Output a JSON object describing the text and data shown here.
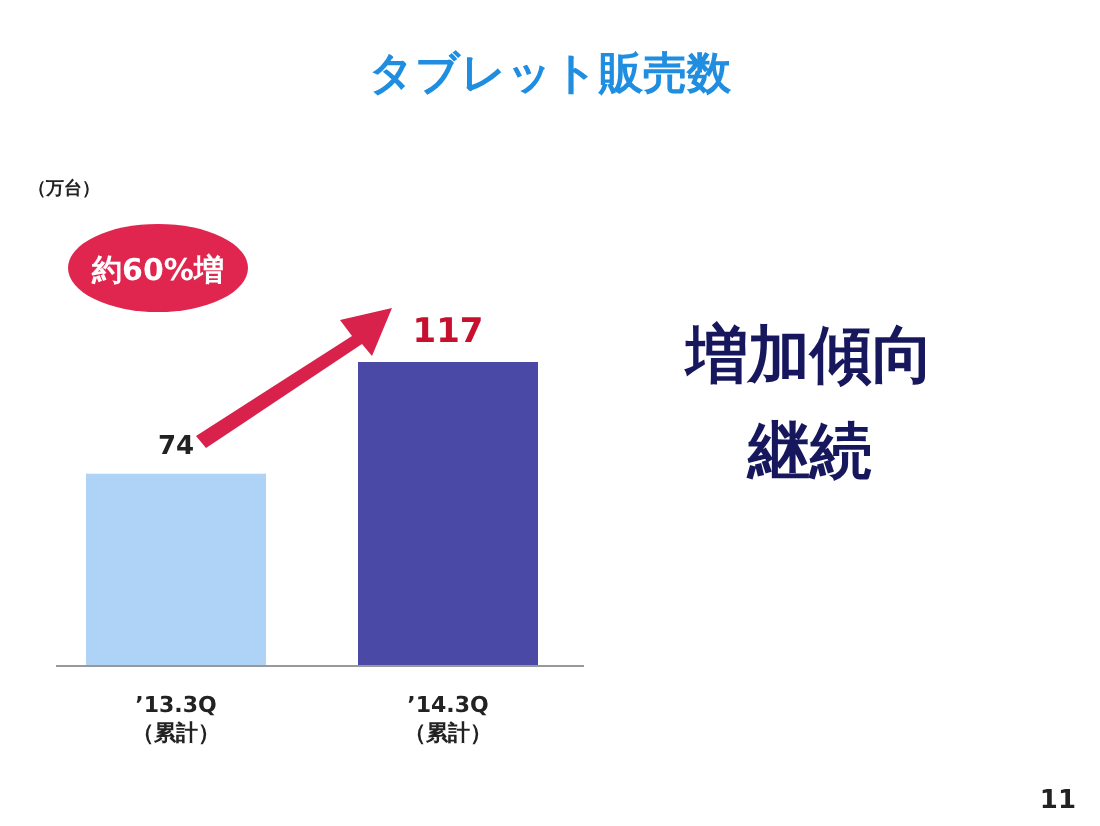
{
  "chart_data": {
    "type": "bar",
    "title": "タブレット販売数",
    "categories": [
      "’13.3Q\n（累計）",
      "’14.3Q\n（累計）"
    ],
    "values": [
      74,
      117
    ],
    "colors": [
      "#aed3f7",
      "#4a4aa6"
    ],
    "tick_labels": "x",
    "data_labels": true,
    "annotations": [
      "（万台）",
      "約60%増",
      "増加傾向",
      "継続",
      "11"
    ]
  }
}
